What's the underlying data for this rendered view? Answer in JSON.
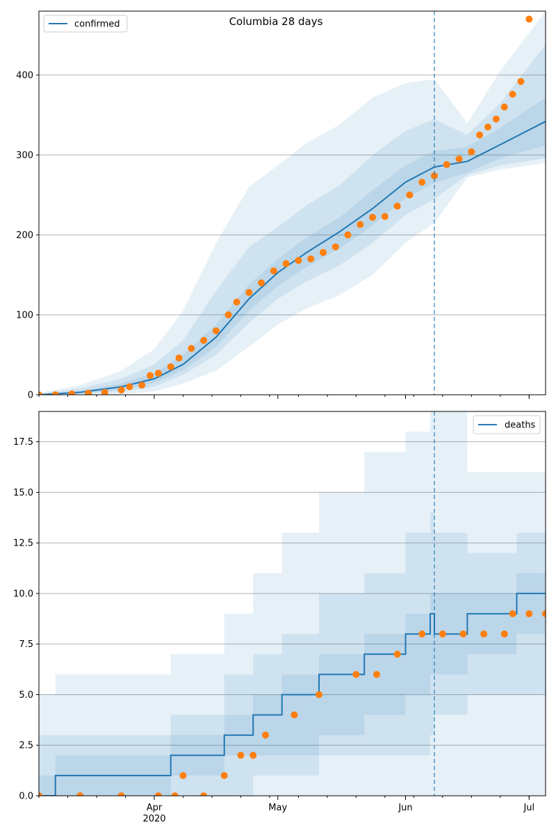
{
  "title": "Columbia 28 days",
  "x_ticks": [
    {
      "label": "Apr",
      "date": "2020-04-01"
    },
    {
      "label": "May",
      "date": "2020-05-01"
    },
    {
      "label": "Jun",
      "date": "2020-06-01"
    },
    {
      "label": "Jul",
      "date": "2020-07-01"
    }
  ],
  "x_year_label": "2020",
  "colors": {
    "line": "#1f77b4",
    "points": "#ff7f0e",
    "band": "#1f77b4",
    "grid": "#b0b0b0",
    "vline": "#1f77b4"
  },
  "chart_data": [
    {
      "type": "line",
      "name": "confirmed",
      "legend": "top-left",
      "x_range": [
        "2020-03-04",
        "2020-07-05"
      ],
      "ylim": [
        0,
        480
      ],
      "yticks": [
        0,
        100,
        200,
        300,
        400
      ],
      "ytick_labels": [
        "0",
        "100",
        "200",
        "300",
        "400"
      ],
      "grid": "y",
      "forecast_start": "2020-06-08",
      "model_curve": {
        "x": [
          "2020-03-04",
          "2020-03-14",
          "2020-03-24",
          "2020-04-01",
          "2020-04-08",
          "2020-04-16",
          "2020-04-24",
          "2020-05-01",
          "2020-05-08",
          "2020-05-16",
          "2020-05-24",
          "2020-06-01",
          "2020-06-08",
          "2020-06-16",
          "2020-06-24",
          "2020-07-05"
        ],
        "y": [
          0,
          3,
          10,
          20,
          38,
          72,
          120,
          153,
          178,
          204,
          233,
          266,
          285,
          292,
          313,
          342
        ],
        "bands": [
          {
            "lower": [
              0,
              0,
              1,
              4,
              14,
              30,
              60,
              88,
              108,
              125,
              150,
              190,
              215,
              272,
              282,
              290
            ],
            "upper": [
              2,
              12,
              30,
              57,
              105,
              190,
              260,
              287,
              315,
              338,
              372,
              390,
              395,
              340,
              405,
              480
            ]
          },
          {
            "lower": [
              0,
              1,
              4,
              10,
              25,
              50,
              90,
              120,
              142,
              162,
              190,
              225,
              245,
              275,
              287,
              296
            ],
            "upper": [
              1,
              8,
              20,
              38,
              68,
              130,
              185,
              210,
              237,
              262,
              300,
              330,
              345,
              325,
              365,
              438
            ]
          },
          {
            "lower": [
              0,
              2,
              6,
              15,
              31,
              60,
              105,
              136,
              160,
              183,
              212,
              246,
              265,
              278,
              296,
              312
            ],
            "upper": [
              0,
              5,
              14,
              27,
              50,
              88,
              138,
              170,
              197,
              222,
              256,
              287,
              305,
              310,
              334,
              372
            ]
          }
        ]
      },
      "observed": {
        "x": [
          "2020-03-04",
          "2020-03-08",
          "2020-03-12",
          "2020-03-16",
          "2020-03-20",
          "2020-03-24",
          "2020-03-26",
          "2020-03-29",
          "2020-03-31",
          "2020-04-02",
          "2020-04-05",
          "2020-04-07",
          "2020-04-10",
          "2020-04-13",
          "2020-04-16",
          "2020-04-19",
          "2020-04-21",
          "2020-04-24",
          "2020-04-27",
          "2020-04-30",
          "2020-05-03",
          "2020-05-06",
          "2020-05-09",
          "2020-05-12",
          "2020-05-15",
          "2020-05-18",
          "2020-05-21",
          "2020-05-24",
          "2020-05-27",
          "2020-05-30",
          "2020-06-02",
          "2020-06-05",
          "2020-06-08",
          "2020-06-11",
          "2020-06-14",
          "2020-06-17",
          "2020-06-19",
          "2020-06-21",
          "2020-06-23",
          "2020-06-25",
          "2020-06-27",
          "2020-06-29",
          "2020-07-01"
        ],
        "y": [
          0,
          0,
          1,
          2,
          3,
          6,
          10,
          12,
          24,
          27,
          35,
          46,
          58,
          68,
          80,
          100,
          116,
          128,
          140,
          155,
          164,
          168,
          170,
          178,
          185,
          200,
          213,
          222,
          223,
          236,
          250,
          266,
          274,
          288,
          295,
          304,
          325,
          335,
          345,
          360,
          376,
          392,
          470
        ]
      }
    },
    {
      "type": "line",
      "name": "deaths",
      "legend": "top-right",
      "x_range": [
        "2020-03-04",
        "2020-07-05"
      ],
      "ylim": [
        0,
        19
      ],
      "yticks": [
        0,
        2.5,
        5,
        7.5,
        10,
        12.5,
        15,
        17.5
      ],
      "ytick_labels": [
        "0.0",
        "2.5",
        "5.0",
        "7.5",
        "10.0",
        "12.5",
        "15.0",
        "17.5"
      ],
      "grid": "y",
      "forecast_start": "2020-06-08",
      "model_curve": {
        "x": [
          "2020-03-04",
          "2020-03-08",
          "2020-04-05",
          "2020-04-18",
          "2020-04-25",
          "2020-05-02",
          "2020-05-11",
          "2020-05-22",
          "2020-06-01",
          "2020-06-07",
          "2020-06-08",
          "2020-06-16",
          "2020-06-28",
          "2020-07-05"
        ],
        "y": [
          0,
          1,
          2,
          3,
          4,
          5,
          6,
          7,
          8,
          9,
          8,
          9,
          10,
          10
        ],
        "bands": [
          {
            "lower": [
              0,
              0,
              0,
              0,
              0,
              0,
              0,
              0,
              0,
              0,
              0,
              0,
              0,
              0
            ],
            "upper": [
              5,
              6,
              7,
              9,
              11,
              13,
              15,
              17,
              18,
              19,
              19,
              16,
              16,
              17
            ]
          },
          {
            "lower": [
              0,
              0,
              0,
              0,
              1,
              1,
              2,
              2,
              2,
              3,
              4,
              5,
              5,
              6
            ],
            "upper": [
              3,
              3,
              4,
              6,
              7,
              8,
              10,
              11,
              13,
              14,
              13,
              12,
              13,
              14
            ]
          },
          {
            "lower": [
              0,
              0,
              1,
              2,
              2,
              2,
              3,
              4,
              5,
              6,
              6,
              7,
              8,
              8
            ],
            "upper": [
              1,
              2,
              3,
              4,
              5,
              6,
              7,
              8,
              9,
              10,
              10,
              10,
              11,
              12
            ]
          }
        ]
      },
      "observed": {
        "x": [
          "2020-03-04",
          "2020-03-14",
          "2020-03-24",
          "2020-04-02",
          "2020-04-06",
          "2020-04-08",
          "2020-04-13",
          "2020-04-18",
          "2020-04-22",
          "2020-04-25",
          "2020-04-28",
          "2020-05-05",
          "2020-05-11",
          "2020-05-20",
          "2020-05-25",
          "2020-05-30",
          "2020-06-05",
          "2020-06-10",
          "2020-06-15",
          "2020-06-20",
          "2020-06-25",
          "2020-06-27",
          "2020-07-01",
          "2020-07-05"
        ],
        "y": [
          0,
          0,
          0,
          0,
          0,
          1,
          0,
          1,
          2,
          2,
          3,
          4,
          5,
          6,
          6,
          7,
          8,
          8,
          8,
          8,
          8,
          9,
          9,
          9
        ]
      }
    }
  ]
}
